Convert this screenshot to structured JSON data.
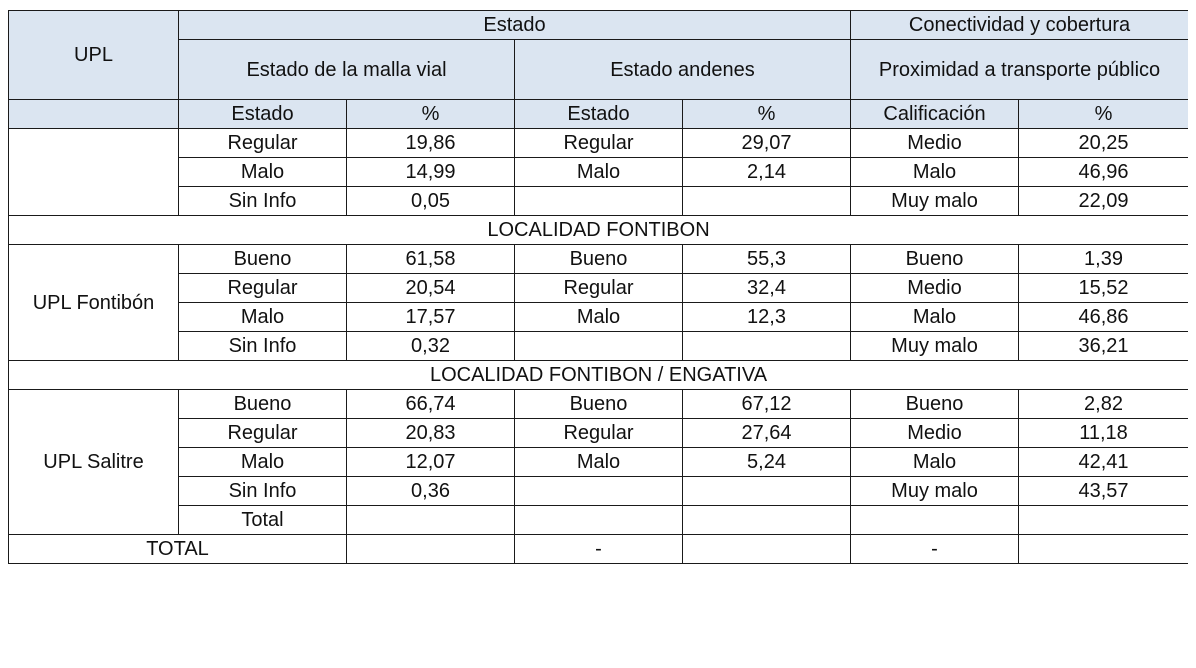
{
  "header": {
    "upl": "UPL",
    "estado": "Estado",
    "conectividad": "Conectividad y cobertura",
    "malla_vial": "Estado de la malla vial",
    "andenes": "Estado andenes",
    "proximidad": "Proximidad a transporte público",
    "sub_estado_1": "Estado",
    "sub_pct_1": "%",
    "sub_estado_2": "Estado",
    "sub_pct_2": "%",
    "sub_calif": "Calificación",
    "sub_pct_3": "%"
  },
  "group0": {
    "rows": [
      [
        "Regular",
        "19,86",
        "Regular",
        "29,07",
        "Medio",
        "20,25"
      ],
      [
        "Malo",
        "14,99",
        "Malo",
        "2,14",
        "Malo",
        "46,96"
      ],
      [
        "Sin Info",
        "0,05",
        "",
        "",
        "Muy malo",
        "22,09"
      ]
    ]
  },
  "section1": "LOCALIDAD FONTIBON",
  "group1": {
    "upl": "UPL Fontibón",
    "rows": [
      [
        "Bueno",
        "61,58",
        "Bueno",
        "55,3",
        "Bueno",
        "1,39"
      ],
      [
        "Regular",
        "20,54",
        "Regular",
        "32,4",
        "Medio",
        "15,52"
      ],
      [
        "Malo",
        "17,57",
        "Malo",
        "12,3",
        "Malo",
        "46,86"
      ],
      [
        "Sin Info",
        "0,32",
        "",
        "",
        "Muy malo",
        "36,21"
      ]
    ]
  },
  "section2": "LOCALIDAD FONTIBON / ENGATIVA",
  "group2": {
    "upl": "UPL Salitre",
    "rows": [
      [
        "Bueno",
        "66,74",
        "Bueno",
        "67,12",
        "Bueno",
        "2,82"
      ],
      [
        "Regular",
        "20,83",
        "Regular",
        "27,64",
        "Medio",
        "11,18"
      ],
      [
        "Malo",
        "12,07",
        "Malo",
        "5,24",
        "Malo",
        "42,41"
      ],
      [
        "Sin Info",
        "0,36",
        "",
        "",
        "Muy malo",
        "43,57"
      ],
      [
        "Total",
        "",
        "",
        "",
        "",
        ""
      ]
    ]
  },
  "footer": {
    "label": "TOTAL",
    "cells": [
      "",
      "-",
      "",
      "-",
      ""
    ]
  }
}
